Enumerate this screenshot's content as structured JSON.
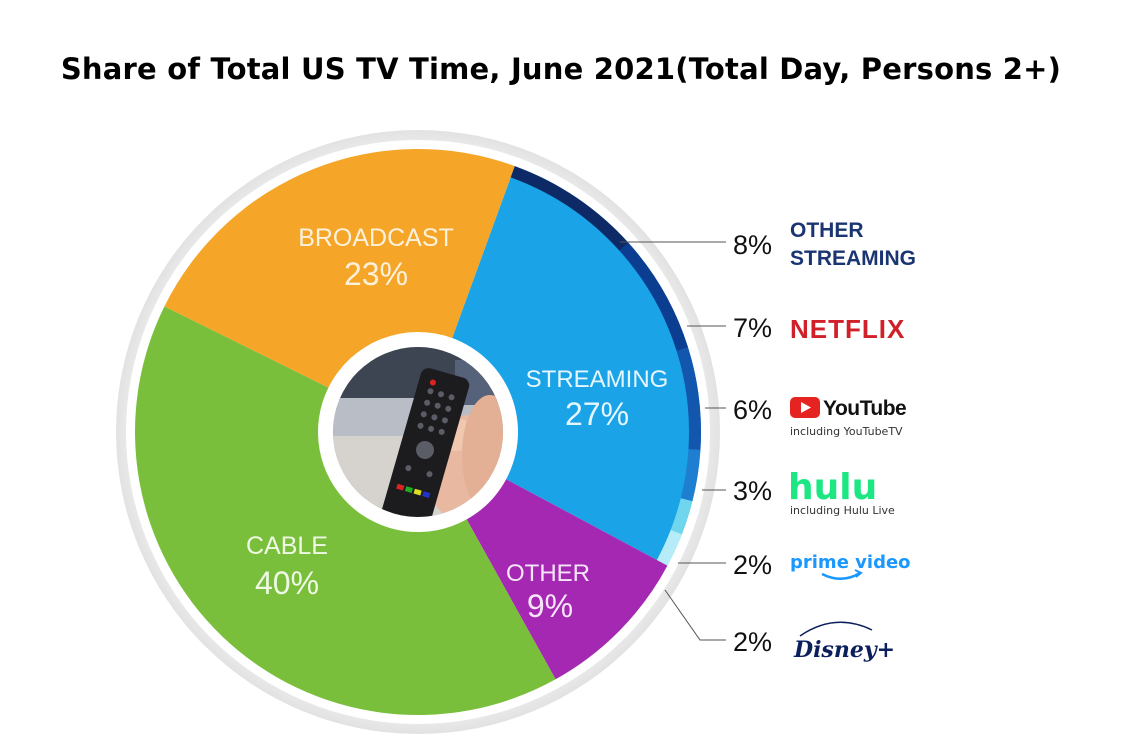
{
  "chart_data": {
    "type": "pie",
    "title": "Share of Total US TV Time, June 2021(Total Day, Persons 2+)",
    "slices": [
      {
        "label": "STREAMING",
        "value": 27,
        "value_label": "27%",
        "color": "#1aa3e6"
      },
      {
        "label": "OTHER",
        "value": 9,
        "value_label": "9%",
        "color": "#a428b2"
      },
      {
        "label": "CABLE",
        "value": 40,
        "value_label": "40%",
        "color": "#7abf3c"
      },
      {
        "label": "BROADCAST",
        "value": 23,
        "value_label": "23%",
        "color": "#f5a527"
      }
    ],
    "streaming_breakdown": [
      {
        "service": "OTHER STREAMING",
        "line1": "OTHER",
        "line2": "STREAMING",
        "value": 8,
        "value_label": "8%",
        "color": "#0e2a66",
        "label_color": "#1b3572"
      },
      {
        "service": "NETFLIX",
        "value": 7,
        "value_label": "7%",
        "color": "#0b3d91",
        "label_color": "#d0202a"
      },
      {
        "service": "YouTube",
        "sub": "including YouTubeTV",
        "value": 6,
        "value_label": "6%",
        "color": "#1257ad",
        "label_color": "#111111"
      },
      {
        "service": "hulu",
        "sub": "including Hulu Live",
        "value": 3,
        "value_label": "3%",
        "color": "#1e7fd0",
        "label_color": "#1ce783"
      },
      {
        "service": "prime video",
        "value": 2,
        "value_label": "2%",
        "color": "#6fd6ee",
        "label_color": "#1a98ff"
      },
      {
        "service": "Disney+",
        "value": 2,
        "value_label": "2%",
        "color": "#b6ecf8",
        "label_color": "#0a1f5c"
      }
    ],
    "legend": "right"
  },
  "icons": {
    "center": "tv-remote-photo-icon",
    "youtube": "youtube-play-icon",
    "prime": "amazon-smile-icon",
    "disney": "disney-plus-logo-icon"
  }
}
